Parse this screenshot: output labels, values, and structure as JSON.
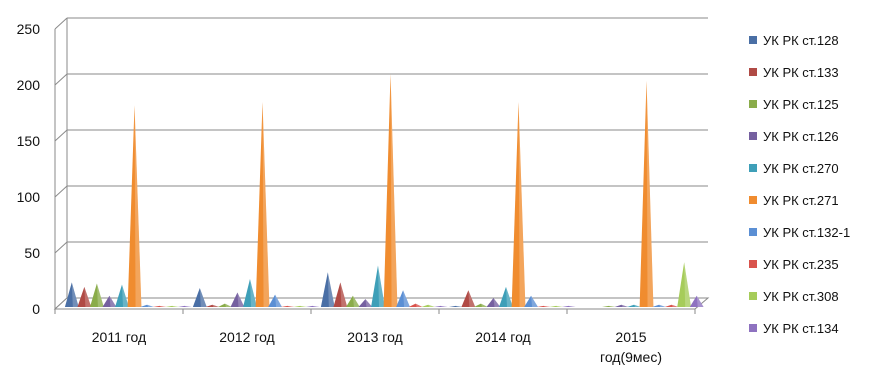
{
  "chart_data": {
    "type": "area",
    "title": "",
    "xlabel": "",
    "ylabel": "",
    "ylim": [
      0,
      250
    ],
    "yticks": [
      "0",
      "50",
      "100",
      "150",
      "200",
      "250"
    ],
    "grid": true,
    "legend_position": "right",
    "categories": [
      "2011 год",
      "2012 год",
      "2013 год",
      "2014 год",
      "2015 год(9мес)"
    ],
    "series": [
      {
        "name": "УК РК ст.128",
        "color": "#4a6fa5",
        "values": [
          22,
          17,
          31,
          1,
          0
        ]
      },
      {
        "name": "УК РК ст.133",
        "color": "#b04a45",
        "values": [
          18,
          2,
          22,
          15,
          0
        ]
      },
      {
        "name": "УК РК ст.125",
        "color": "#8aac4a",
        "values": [
          21,
          3,
          10,
          3,
          1
        ]
      },
      {
        "name": "УК РК ст.126",
        "color": "#7560a0",
        "values": [
          10,
          13,
          7,
          8,
          2
        ]
      },
      {
        "name": "УК РК ст.270",
        "color": "#3e9fb8",
        "values": [
          20,
          25,
          37,
          18,
          2
        ]
      },
      {
        "name": "УК РК ст.271",
        "color": "#f08c2f",
        "values": [
          180,
          183,
          208,
          183,
          202
        ]
      },
      {
        "name": "УК РК ст.132-1",
        "color": "#5b8fd4",
        "values": [
          2,
          11,
          15,
          10,
          2
        ]
      },
      {
        "name": "УК РК ст.235",
        "color": "#d9534c",
        "values": [
          1,
          1,
          3,
          1,
          2
        ]
      },
      {
        "name": "УК РК ст.308",
        "color": "#a6cc5a",
        "values": [
          1,
          1,
          2,
          1,
          40
        ]
      },
      {
        "name": "УК РК ст.134",
        "color": "#8e72c0",
        "values": [
          1,
          1,
          1,
          1,
          10
        ]
      }
    ]
  }
}
